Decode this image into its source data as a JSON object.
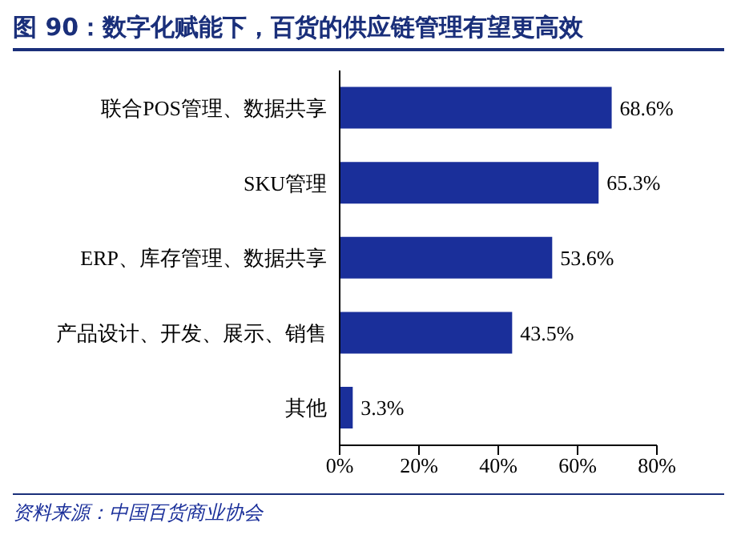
{
  "chart_data": {
    "type": "bar",
    "orientation": "horizontal",
    "title": "图 90：数字化赋能下，百货的供应链管理有望更高效",
    "categories": [
      "联合POS管理、数据共享",
      "SKU管理",
      "ERP、库存管理、数据共享",
      "产品设计、开发、展示、销售",
      "其他"
    ],
    "values": [
      68.6,
      65.3,
      53.6,
      43.5,
      3.3
    ],
    "value_labels": [
      "68.6%",
      "65.3%",
      "53.6%",
      "43.5%",
      "3.3%"
    ],
    "color": "#1a2f9a",
    "xlim": [
      0,
      80
    ],
    "xticks": [
      {
        "value": 0,
        "label": "0%"
      },
      {
        "value": 20,
        "label": "20%"
      },
      {
        "value": 40,
        "label": "40%"
      },
      {
        "value": 60,
        "label": "60%"
      },
      {
        "value": 80,
        "label": "80%"
      }
    ],
    "grid": false,
    "annotations": [
      "资料来源：中国百货商业协会"
    ]
  }
}
